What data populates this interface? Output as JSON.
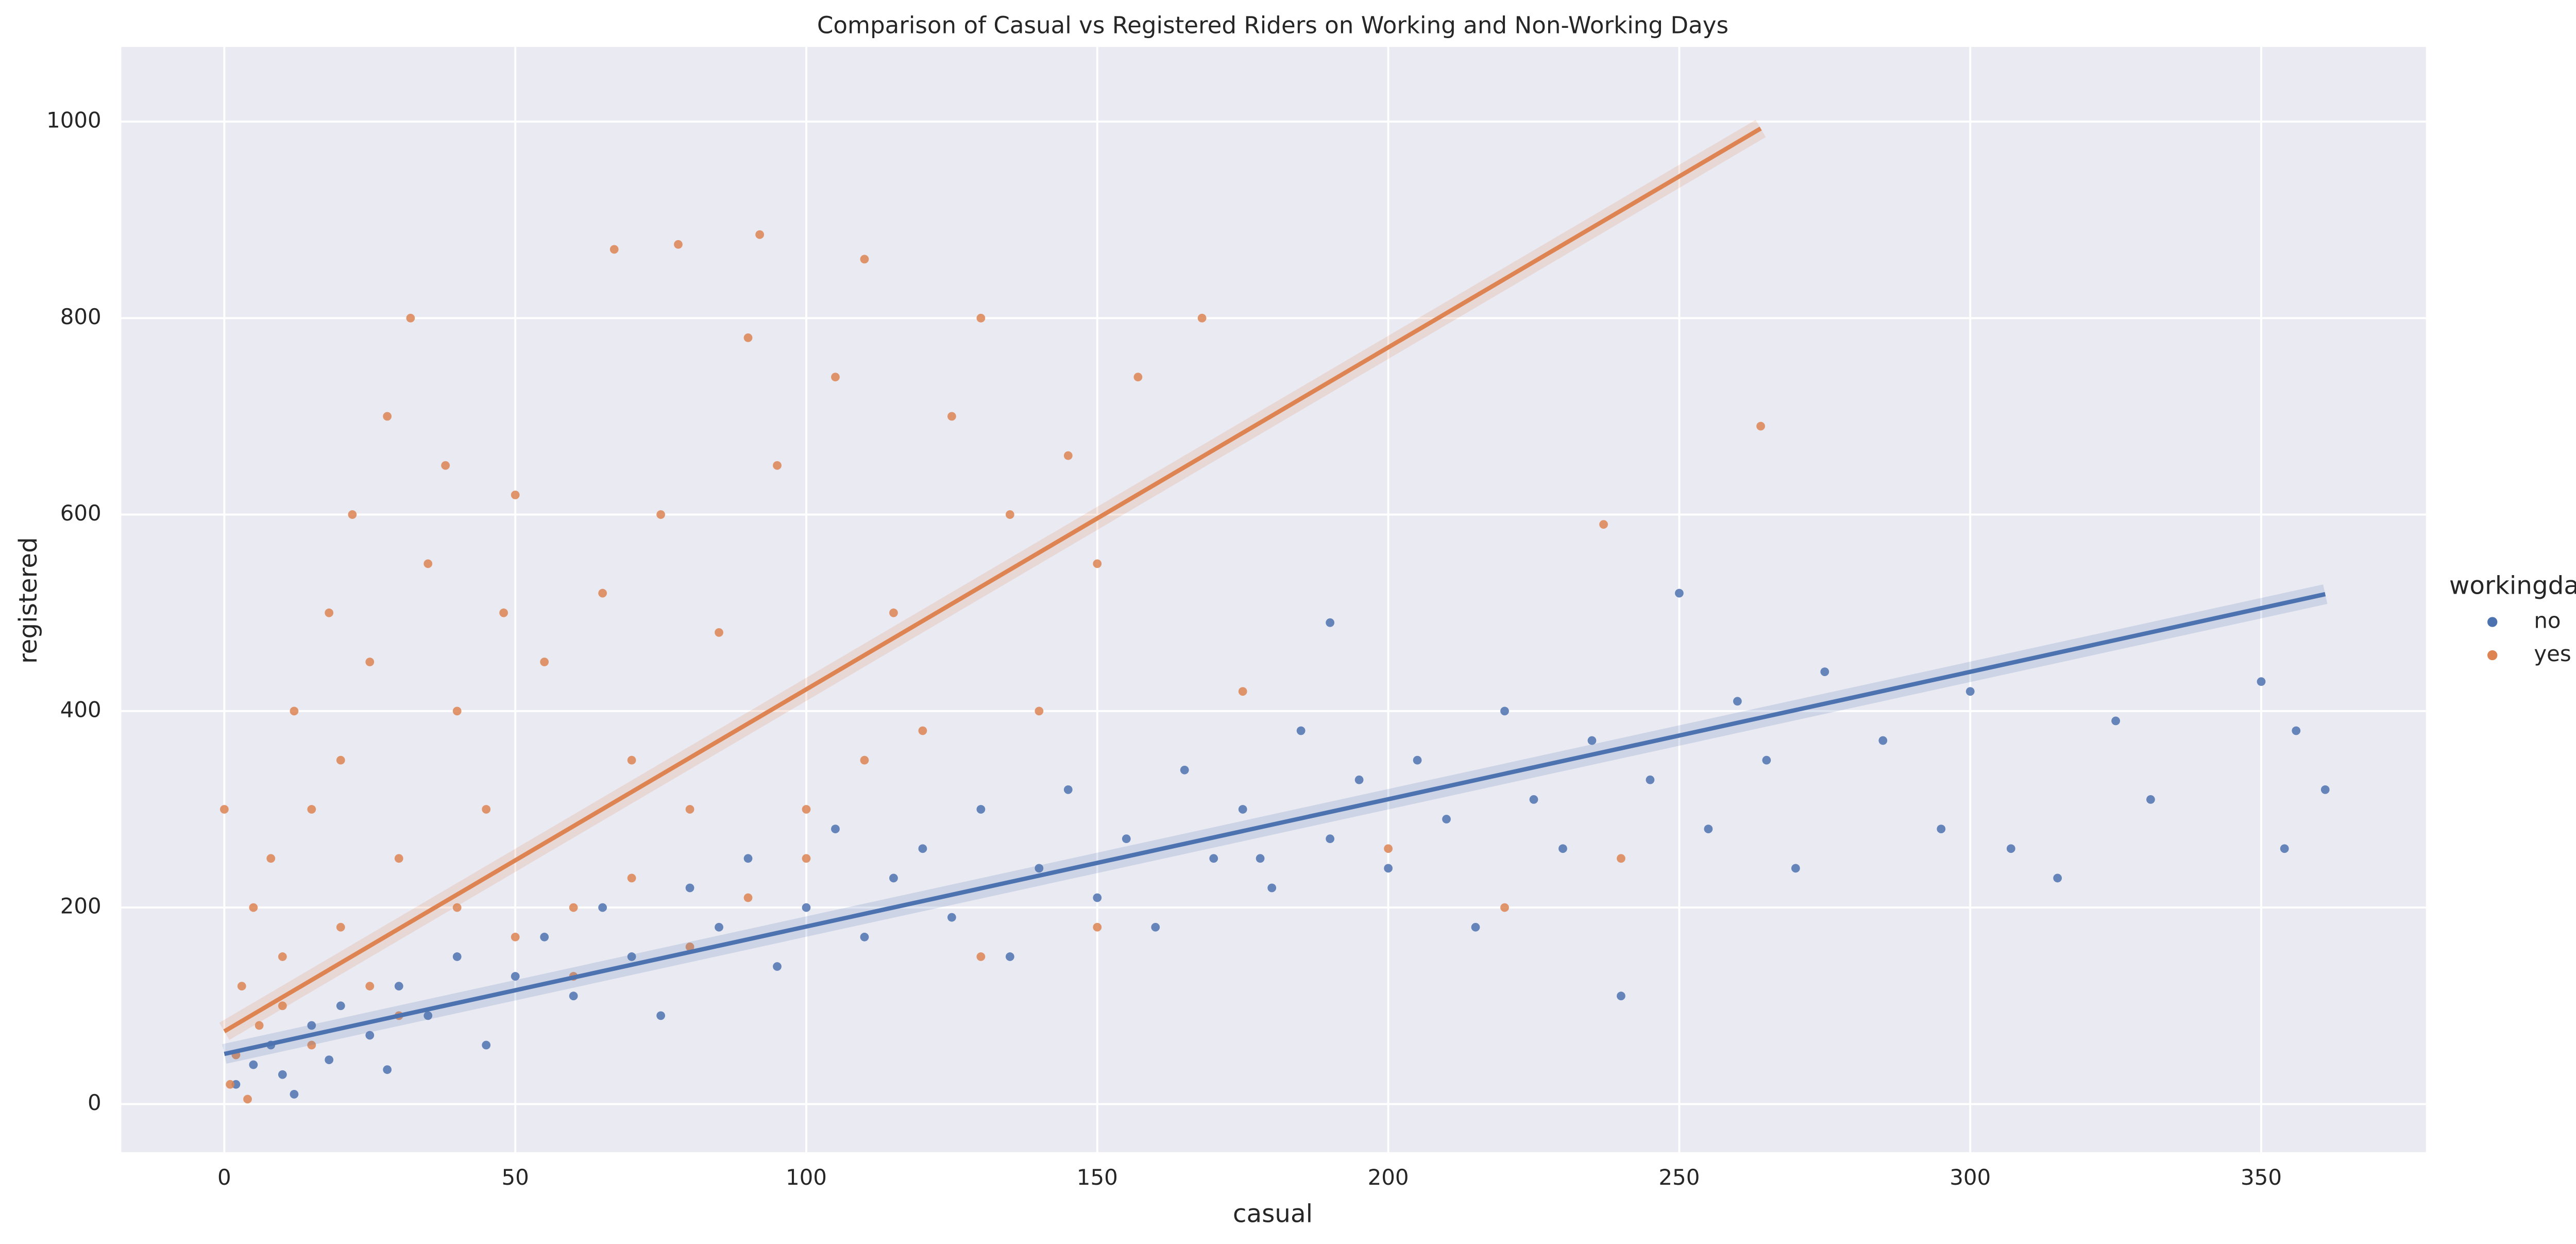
{
  "chart_data": {
    "type": "scatter",
    "title": "Comparison of Casual vs Registered Riders on Working and Non-Working Days",
    "xlabel": "casual",
    "ylabel": "registered",
    "xlim": [
      -17.7,
      378.3
    ],
    "ylim": [
      -49,
      1076
    ],
    "xticks": [
      0,
      50,
      100,
      150,
      200,
      250,
      300,
      350
    ],
    "yticks": [
      0,
      200,
      400,
      600,
      800,
      1000
    ],
    "grid": true,
    "legend_title": "workingday",
    "legend_position": "right",
    "series": [
      {
        "name": "no",
        "color": "#4c72b0",
        "x": [
          2,
          5,
          8,
          10,
          12,
          15,
          18,
          20,
          25,
          28,
          30,
          35,
          40,
          45,
          50,
          55,
          60,
          65,
          70,
          75,
          80,
          85,
          90,
          95,
          100,
          105,
          110,
          115,
          120,
          125,
          130,
          135,
          140,
          145,
          150,
          155,
          160,
          165,
          170,
          175,
          178,
          180,
          185,
          190,
          190,
          195,
          200,
          205,
          210,
          215,
          220,
          225,
          230,
          235,
          240,
          245,
          250,
          255,
          260,
          265,
          270,
          275,
          285,
          295,
          300,
          307,
          315,
          325,
          331,
          350,
          354,
          356,
          361
        ],
        "values": [
          20,
          40,
          60,
          30,
          10,
          80,
          45,
          100,
          70,
          35,
          120,
          90,
          150,
          60,
          130,
          170,
          110,
          200,
          150,
          90,
          220,
          180,
          250,
          140,
          200,
          280,
          170,
          230,
          260,
          190,
          300,
          150,
          240,
          320,
          210,
          270,
          180,
          340,
          250,
          300,
          250,
          220,
          380,
          270,
          490,
          330,
          240,
          350,
          290,
          180,
          400,
          310,
          260,
          370,
          110,
          330,
          520,
          280,
          410,
          350,
          240,
          440,
          370,
          280,
          420,
          260,
          230,
          390,
          310,
          430,
          260,
          380,
          320
        ],
        "fit": {
          "x": [
            0,
            361
          ],
          "values": [
            51,
            519
          ]
        }
      },
      {
        "name": "yes",
        "color": "#dd8452",
        "x": [
          0,
          1,
          2,
          3,
          4,
          5,
          6,
          8,
          10,
          12,
          15,
          18,
          20,
          22,
          25,
          28,
          30,
          32,
          35,
          38,
          40,
          45,
          48,
          50,
          55,
          60,
          65,
          67,
          70,
          75,
          78,
          80,
          85,
          90,
          92,
          95,
          100,
          105,
          110,
          115,
          120,
          125,
          130,
          135,
          140,
          145,
          150,
          157,
          168,
          175,
          237,
          264,
          10,
          15,
          20,
          25,
          30,
          40,
          50,
          60,
          70,
          80,
          90,
          100,
          110,
          130,
          150,
          200,
          220,
          240
        ],
        "values": [
          300,
          20,
          50,
          120,
          5,
          200,
          80,
          250,
          150,
          400,
          300,
          500,
          350,
          600,
          450,
          700,
          250,
          800,
          550,
          650,
          400,
          300,
          500,
          620,
          450,
          200,
          520,
          870,
          350,
          600,
          875,
          300,
          480,
          780,
          885,
          650,
          250,
          740,
          860,
          500,
          380,
          700,
          800,
          600,
          400,
          660,
          550,
          740,
          800,
          420,
          590,
          690,
          100,
          60,
          180,
          120,
          90,
          200,
          170,
          130,
          230,
          160,
          210,
          300,
          350,
          150,
          180,
          260,
          200,
          250
        ],
        "fit": {
          "x": [
            0,
            264
          ],
          "values": [
            74,
            993
          ]
        }
      }
    ]
  }
}
